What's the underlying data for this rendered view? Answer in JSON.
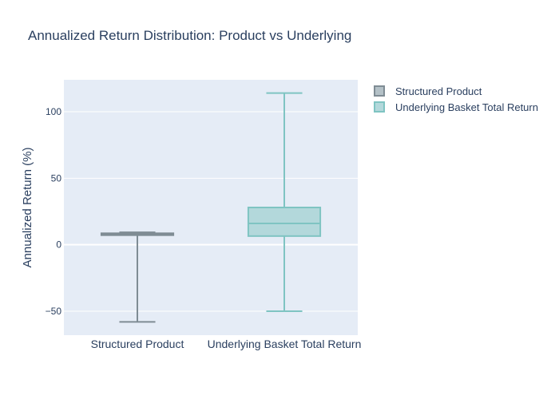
{
  "chart_data": {
    "type": "box",
    "title": "Annualized Return Distribution: Product vs Underlying",
    "xlabel": "",
    "ylabel": "Annualized Return (%)",
    "ylim": [
      -68,
      124
    ],
    "yticks": [
      -50,
      0,
      50,
      100
    ],
    "ytick_labels": [
      "−50",
      "0",
      "50",
      "100"
    ],
    "categories": [
      "Structured Product",
      "Underlying Basket Total Return"
    ],
    "grid": true,
    "legend_position": "top-right",
    "series": [
      {
        "name": "Structured Product",
        "category": "Structured Product",
        "min": -58,
        "q1": 7.2,
        "median": 7.8,
        "q3": 8.6,
        "max": 9.3,
        "line_color": "#7f8c94",
        "fill_color": "#b4c1c7"
      },
      {
        "name": "Underlying Basket Total Return",
        "category": "Underlying Basket Total Return",
        "min": -50,
        "q1": 6.5,
        "median": 16,
        "q3": 28,
        "max": 114,
        "line_color": "#7fc4c2",
        "fill_color": "#b3d8db"
      }
    ]
  },
  "colors": {
    "plot_background": "#e5ecf6",
    "grid": "#ffffff",
    "text": "#2a3f5f"
  }
}
